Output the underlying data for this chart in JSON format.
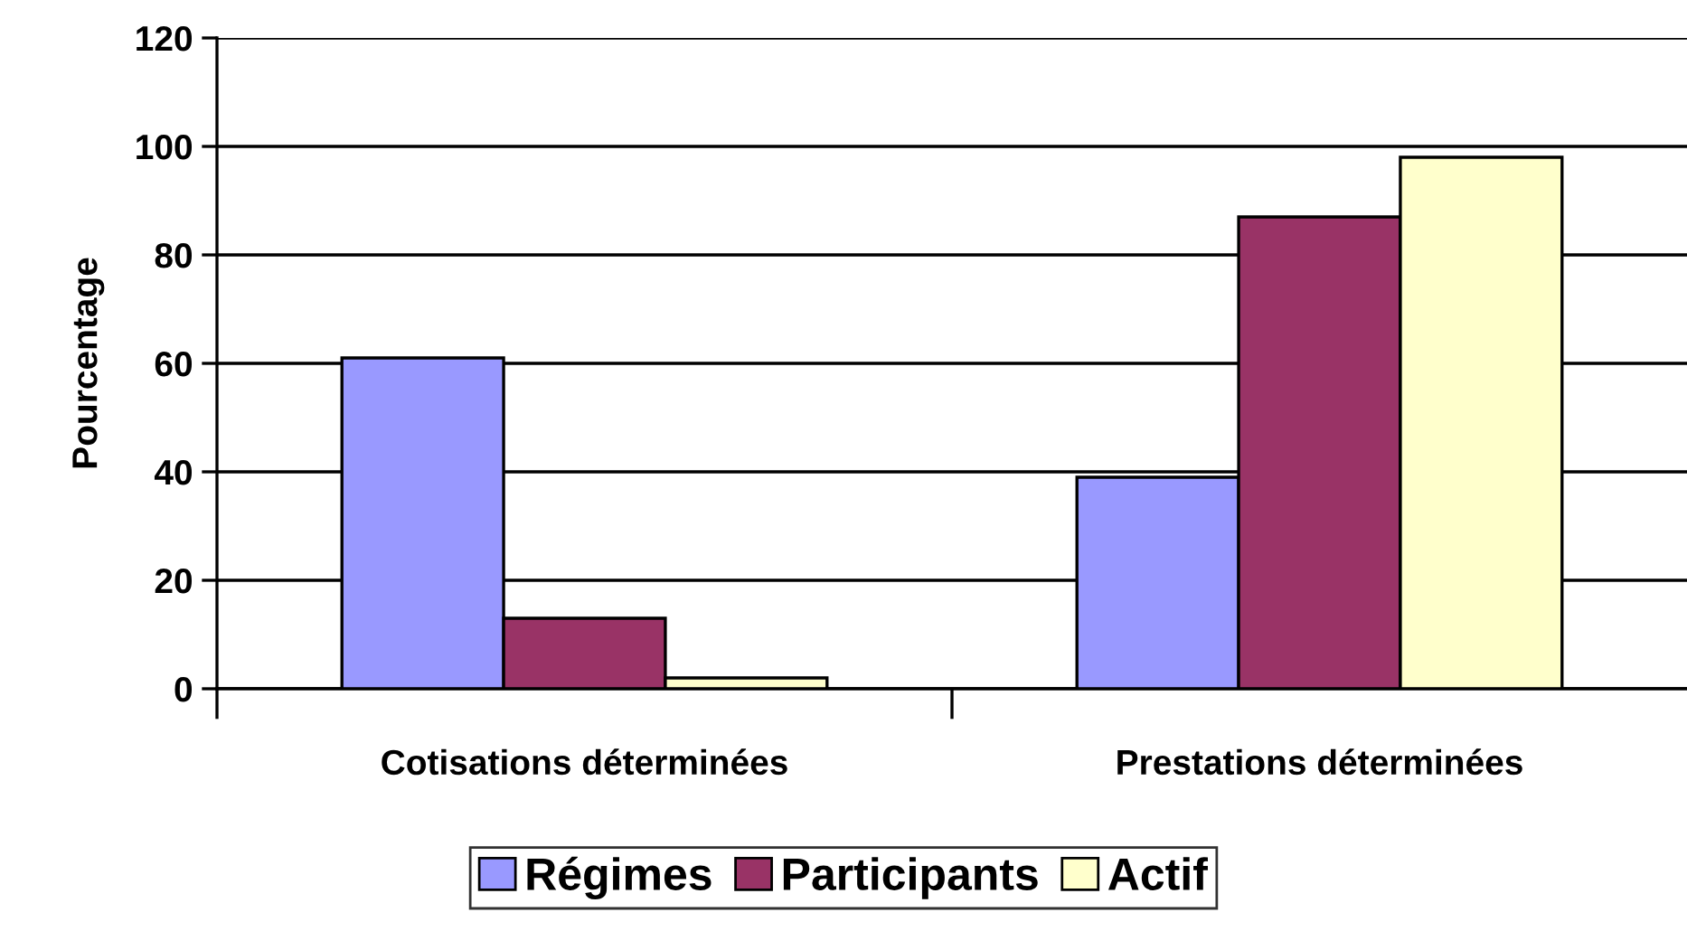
{
  "chart_data": {
    "type": "bar",
    "ylabel": "Pourcentage",
    "categories": [
      "Cotisations déterminées",
      "Prestations déterminées"
    ],
    "series": [
      {
        "name": "Régimes",
        "color": "#9999ff",
        "values": [
          61,
          39
        ]
      },
      {
        "name": "Participants",
        "color": "#993366",
        "values": [
          13,
          87
        ]
      },
      {
        "name": "Actif",
        "color": "#ffffcc",
        "values": [
          2,
          98
        ]
      }
    ],
    "ylim": [
      0,
      120
    ],
    "yticks": [
      0,
      20,
      40,
      60,
      80,
      100,
      120
    ],
    "grid": "y",
    "legend": "bottom"
  }
}
